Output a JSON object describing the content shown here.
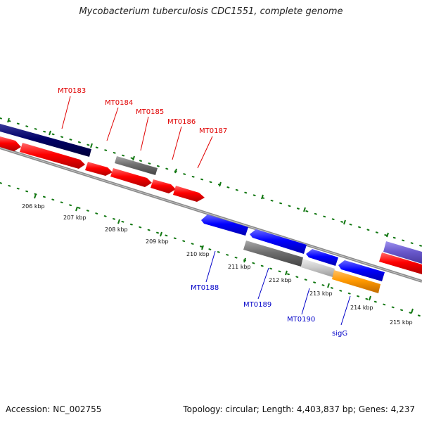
{
  "title": "Mycobacterium tuberculosis CDC1551, complete genome",
  "footer": {
    "accession": "Accession: NC_002755",
    "topology": "Topology: circular; Length: 4,403,837 bp; Genes: 4,237"
  },
  "colors": {
    "forward": "#ff0000",
    "reverse": "#0000ff",
    "dark_navy": "#000066",
    "gray": "#6f6f6f",
    "light_gray": "#c8c8c8",
    "orange": "#ff9900",
    "lavender": "#6a5acd",
    "ticks": "#117711",
    "backbone": "#808080",
    "label_forward": "#e00000",
    "label_reverse": "#0000c8"
  },
  "scale_labels": [
    "206 kbp",
    "207 kbp",
    "208 kbp",
    "209 kbp",
    "210 kbp",
    "211 kbp",
    "212 kbp",
    "213 kbp",
    "214 kbp",
    "215 kbp"
  ],
  "forward_genes": [
    "MT0183",
    "MT0184",
    "MT0185",
    "MT0186",
    "MT0187"
  ],
  "reverse_genes": [
    "MT0188",
    "MT0189",
    "MT0190",
    "sigG"
  ]
}
